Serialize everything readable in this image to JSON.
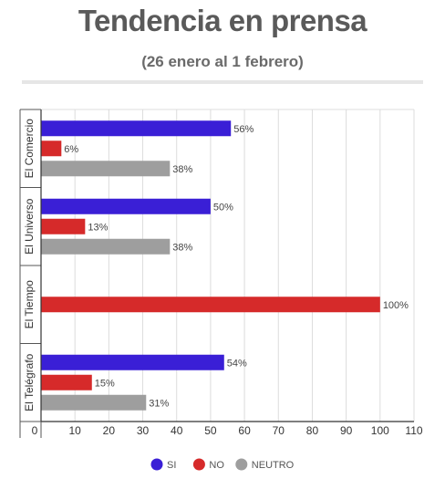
{
  "header": {
    "title": "Tendencia en prensa",
    "subtitle": "(26 enero al 1 febrero)"
  },
  "chart_data": {
    "type": "bar",
    "orientation": "horizontal",
    "categories": [
      "El Comercio",
      "El Universo",
      "El Tiempo",
      "El Telégrafo"
    ],
    "series": [
      {
        "name": "SI",
        "color": "#3a1fd6",
        "values": [
          56,
          50,
          null,
          54
        ]
      },
      {
        "name": "NO",
        "color": "#d62a2a",
        "values": [
          6,
          13,
          100,
          15
        ]
      },
      {
        "name": "NEUTRO",
        "color": "#9e9e9e",
        "values": [
          38,
          38,
          null,
          31
        ]
      }
    ],
    "value_labels": [
      [
        "56%",
        "50%",
        null,
        "54%"
      ],
      [
        "6%",
        "13%",
        "100%",
        "15%"
      ],
      [
        "38%",
        "38%",
        null,
        "31%"
      ]
    ],
    "xlim": [
      0,
      110
    ],
    "xticks": [
      0,
      10,
      20,
      30,
      40,
      50,
      60,
      70,
      80,
      90,
      100,
      110
    ],
    "grid": true,
    "legend_position": "bottom"
  }
}
